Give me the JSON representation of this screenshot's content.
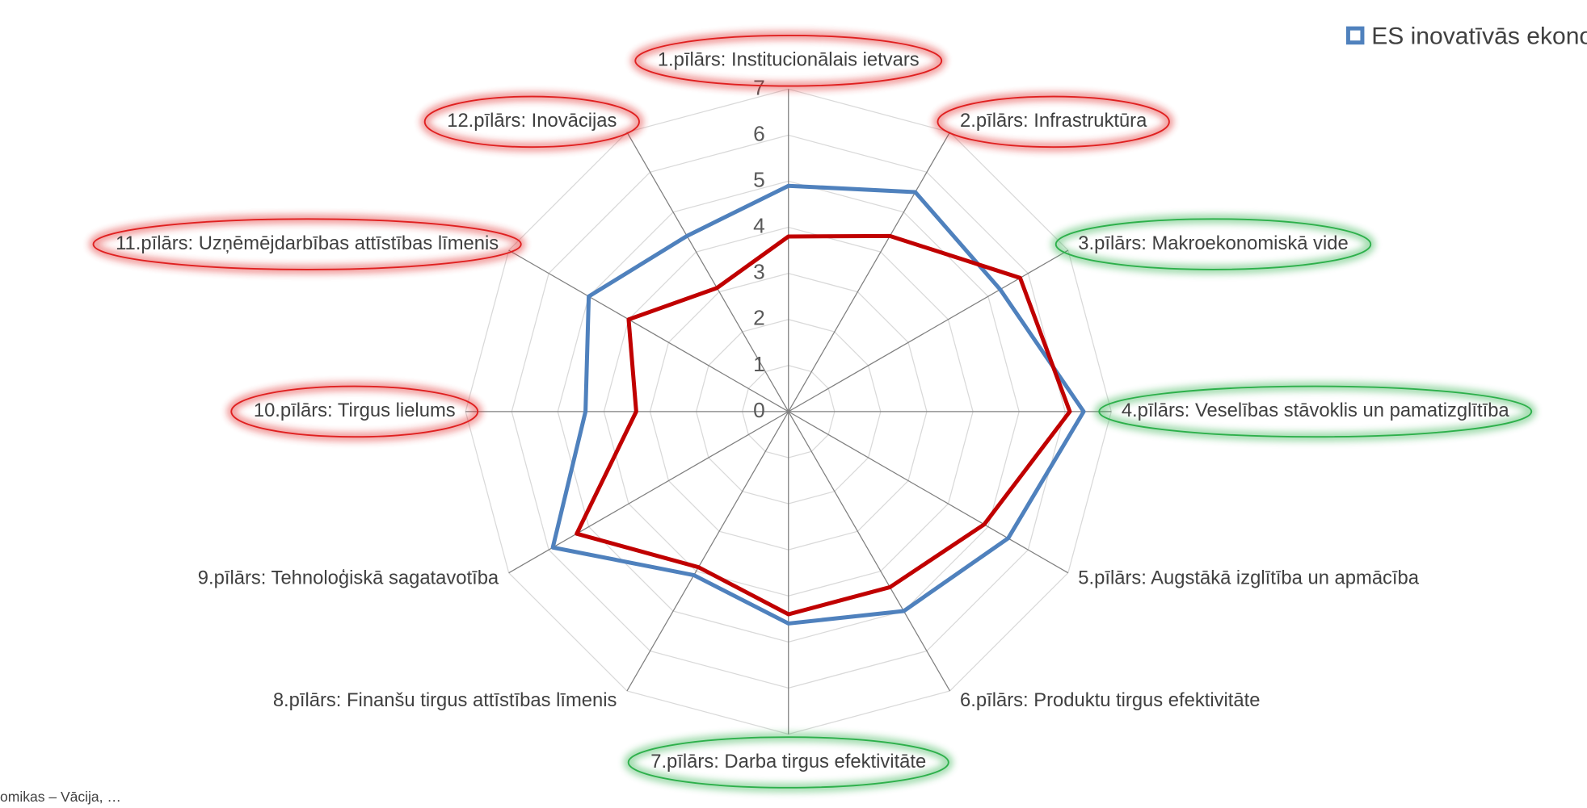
{
  "chart_data": {
    "type": "radar",
    "categories": [
      "1.pīlārs: Institucionālais ietvars",
      "2.pīlārs: Infrastruktūra",
      "3.pīlārs: Makroekonomiskā vide",
      "4.pīlārs: Veselības stāvoklis un pamatizglītība",
      "5.pīlārs: Augstākā izglītība un apmācība",
      "6.pīlārs: Produktu tirgus efektivitāte",
      "7.pīlārs: Darba tirgus efektivitāte",
      "8.pīlārs: Finanšu tirgus attīstības līmenis",
      "9.pīlārs: Tehnoloģiskā sagatavotība",
      "10.pīlārs: Tirgus lielums",
      "11.pīlārs: Uzņēmējdarbības attīstības līmenis",
      "12.pīlārs: Inovācijas"
    ],
    "series": [
      {
        "name": "ES inovatīvās ekono",
        "color": "#4f81bd",
        "values": [
          4.9,
          5.5,
          5.3,
          6.4,
          5.5,
          5.0,
          4.6,
          4.1,
          5.9,
          4.4,
          5.0,
          4.4
        ]
      },
      {
        "color": "#c00000",
        "values": [
          3.8,
          4.4,
          5.8,
          6.1,
          4.9,
          4.4,
          4.4,
          3.9,
          5.3,
          3.3,
          4.0,
          3.1
        ]
      }
    ],
    "ylim": [
      0,
      7
    ],
    "yticks": [
      0,
      1,
      2,
      3,
      4,
      5,
      6,
      7
    ],
    "grid": true,
    "legend": "top-right",
    "category_highlights": [
      "#e02020",
      "#e02020",
      "#2db04b",
      "#2db04b",
      null,
      null,
      "#2db04b",
      null,
      null,
      "#e02020",
      "#e02020",
      "#e02020"
    ],
    "annotation": "omikas – Vācija, …"
  }
}
